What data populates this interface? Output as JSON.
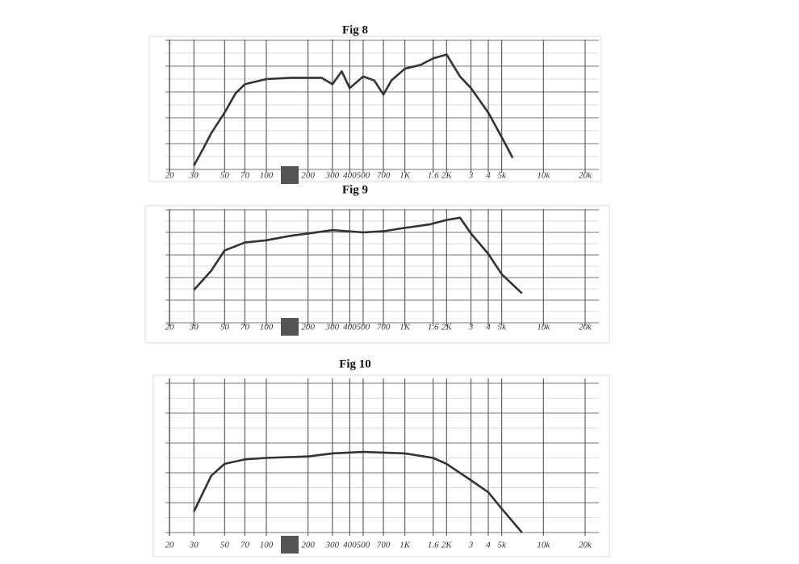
{
  "chart_data": [
    {
      "type": "line",
      "title": "Fig 8",
      "xscale": "log",
      "xlim": [
        20,
        20000
      ],
      "ylim": [
        0,
        10
      ],
      "xticks": [
        20,
        30,
        50,
        70,
        100,
        200,
        300,
        400,
        500,
        700,
        {
          "value": 1000,
          "label": "1K"
        },
        {
          "value": 1600,
          "label": "1.6"
        },
        {
          "value": 2000,
          "label": "2K"
        },
        {
          "value": 3000,
          "label": "3"
        },
        {
          "value": 4000,
          "label": "4"
        },
        {
          "value": 5000,
          "label": "5k"
        },
        {
          "value": 10000,
          "label": "10k"
        },
        {
          "value": 20000,
          "label": "20k"
        }
      ],
      "x": [
        30,
        35,
        40,
        50,
        60,
        70,
        100,
        150,
        250,
        300,
        350,
        400,
        500,
        600,
        700,
        800,
        1000,
        1300,
        1600,
        2000,
        2500,
        3000,
        4000,
        5000,
        6000
      ],
      "series": [
        {
          "color": "#333333",
          "values": [
            0.3,
            1.6,
            2.8,
            4.4,
            5.9,
            6.6,
            7.0,
            7.1,
            7.1,
            6.6,
            7.6,
            6.3,
            7.2,
            6.9,
            5.8,
            6.9,
            7.8,
            8.1,
            8.6,
            8.9,
            7.2,
            6.3,
            4.4,
            2.5,
            0.9
          ]
        }
      ]
    },
    {
      "type": "line",
      "title": "Fig 9",
      "xscale": "log",
      "xlim": [
        20,
        20000
      ],
      "ylim": [
        0,
        10
      ],
      "xticks": [
        20,
        30,
        50,
        70,
        100,
        200,
        300,
        400,
        500,
        700,
        {
          "value": 1000,
          "label": "1K"
        },
        {
          "value": 1600,
          "label": "1.6"
        },
        {
          "value": 2000,
          "label": "2K"
        },
        {
          "value": 3000,
          "label": "3"
        },
        {
          "value": 4000,
          "label": "4"
        },
        {
          "value": 5000,
          "label": "5k"
        },
        {
          "value": 10000,
          "label": "10k"
        },
        {
          "value": 20000,
          "label": "20k"
        }
      ],
      "x": [
        30,
        40,
        50,
        70,
        100,
        150,
        200,
        300,
        500,
        700,
        1000,
        1500,
        2000,
        2500,
        3000,
        4000,
        5000,
        7000
      ],
      "series": [
        {
          "color": "#333333",
          "values": [
            2.9,
            4.6,
            6.4,
            7.1,
            7.3,
            7.7,
            7.9,
            8.2,
            8.0,
            8.1,
            8.4,
            8.7,
            9.1,
            9.3,
            7.9,
            6.1,
            4.3,
            2.6
          ]
        }
      ]
    },
    {
      "type": "line",
      "title": "Fig 10",
      "xscale": "log",
      "xlim": [
        20,
        20000
      ],
      "ylim": [
        0,
        10
      ],
      "xticks": [
        20,
        30,
        50,
        70,
        100,
        200,
        300,
        400,
        500,
        700,
        {
          "value": 1000,
          "label": "1K"
        },
        {
          "value": 1600,
          "label": "1.6"
        },
        {
          "value": 2000,
          "label": "2K"
        },
        {
          "value": 3000,
          "label": "3"
        },
        {
          "value": 4000,
          "label": "4"
        },
        {
          "value": 5000,
          "label": "5k"
        },
        {
          "value": 10000,
          "label": "10k"
        },
        {
          "value": 20000,
          "label": "20k"
        }
      ],
      "x": [
        30,
        40,
        50,
        70,
        100,
        200,
        300,
        500,
        1000,
        1600,
        2000,
        3000,
        4000,
        5000,
        7000
      ],
      "series": [
        {
          "color": "#333333",
          "values": [
            1.4,
            3.8,
            4.6,
            4.9,
            5.0,
            5.1,
            5.3,
            5.4,
            5.3,
            5.0,
            4.6,
            3.5,
            2.7,
            1.6,
            0
          ]
        }
      ]
    }
  ]
}
